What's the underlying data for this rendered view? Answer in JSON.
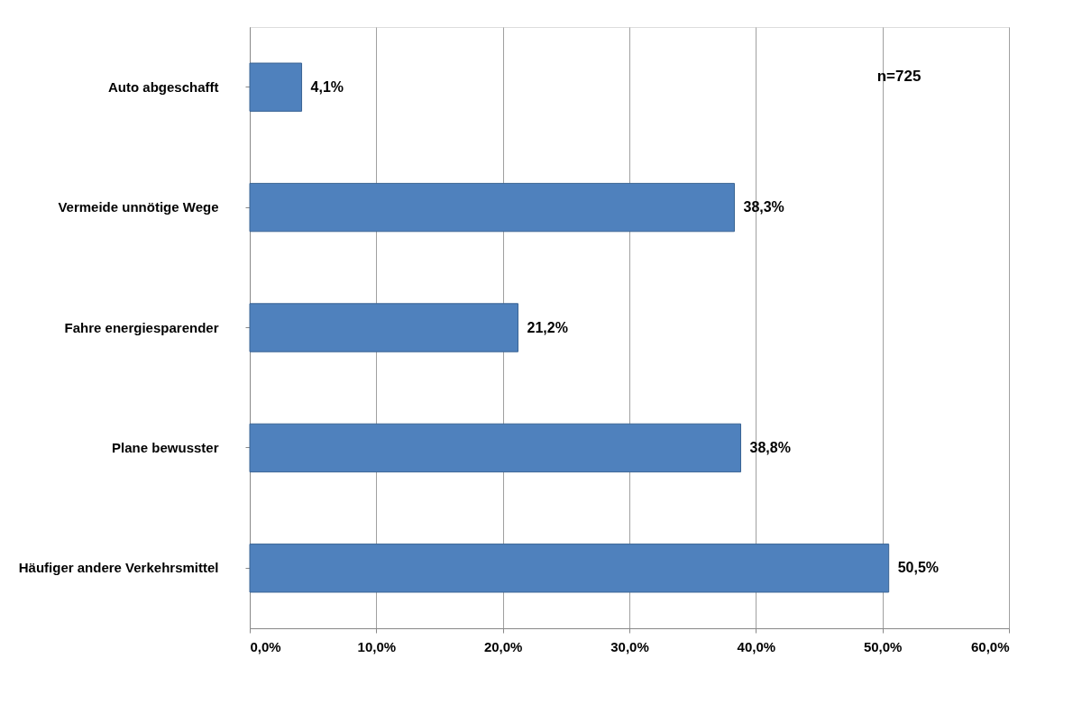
{
  "chart_data": {
    "type": "bar",
    "orientation": "horizontal",
    "categories": [
      "Auto abgeschafft",
      "Vermeide unnötige Wege",
      "Fahre energiesparender",
      "Plane bewusster",
      "Häufiger andere Verkehrsmittel"
    ],
    "values": [
      4.1,
      38.3,
      21.2,
      38.8,
      50.5
    ],
    "value_labels": [
      "4,1%",
      "38,3%",
      "21,2%",
      "38,8%",
      "50,5%"
    ],
    "color": "#4f81bd",
    "xlim": [
      0,
      60
    ],
    "xticks": [
      {
        "value": 0,
        "label": "0,0%"
      },
      {
        "value": 10,
        "label": "10,0%"
      },
      {
        "value": 20,
        "label": "20,0%"
      },
      {
        "value": 30,
        "label": "30,0%"
      },
      {
        "value": 40,
        "label": "40,0%"
      },
      {
        "value": 50,
        "label": "50,0%"
      },
      {
        "value": 60,
        "label": "60,0%"
      }
    ],
    "grid": "x",
    "annotations": [
      "n=725"
    ]
  }
}
